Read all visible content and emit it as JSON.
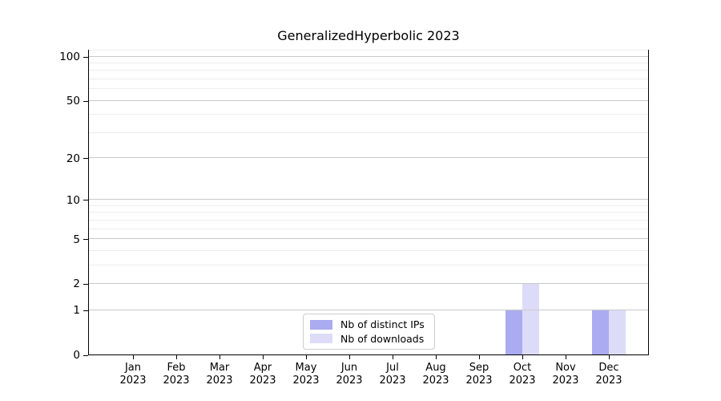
{
  "title": "GeneralizedHyperbolic 2023",
  "legend": {
    "items": [
      {
        "label": "Nb of distinct IPs",
        "color": "#aaabf0"
      },
      {
        "label": "Nb of downloads",
        "color": "#dcdcf8"
      }
    ]
  },
  "colors": {
    "bar_distinct_ips": "#aaabf0",
    "bar_downloads": "#dcdcf8",
    "grid_major": "#c9c9c9",
    "grid_minor": "#ededed",
    "spine": "#000000",
    "legend_border": "#cccccc"
  },
  "chart_data": {
    "type": "bar",
    "title": "GeneralizedHyperbolic 2023",
    "months": [
      "Jan",
      "Feb",
      "Mar",
      "Apr",
      "May",
      "Jun",
      "Jul",
      "Aug",
      "Sep",
      "Oct",
      "Nov",
      "Dec"
    ],
    "year": "2023",
    "categories": [
      "Jan 2023",
      "Feb 2023",
      "Mar 2023",
      "Apr 2023",
      "May 2023",
      "Jun 2023",
      "Jul 2023",
      "Aug 2023",
      "Sep 2023",
      "Oct 2023",
      "Nov 2023",
      "Dec 2023"
    ],
    "series": [
      {
        "name": "Nb of distinct IPs",
        "color": "#aaabf0",
        "values": [
          0,
          0,
          0,
          0,
          0,
          0,
          0,
          0,
          0,
          1,
          0,
          1
        ]
      },
      {
        "name": "Nb of downloads",
        "color": "#dcdcf8",
        "values": [
          0,
          0,
          0,
          0,
          0,
          0,
          0,
          0,
          0,
          2,
          0,
          1
        ]
      }
    ],
    "xlabel": "",
    "ylabel": "",
    "yscale": "log1p",
    "ylim": [
      0,
      112
    ],
    "yticks_major": [
      0,
      1,
      2,
      5,
      10,
      20,
      50,
      100
    ],
    "yticks_minor": [
      3,
      4,
      6,
      7,
      8,
      9,
      30,
      40,
      60,
      70,
      80,
      90,
      110
    ],
    "grid": true,
    "legend_position": "lower center"
  }
}
